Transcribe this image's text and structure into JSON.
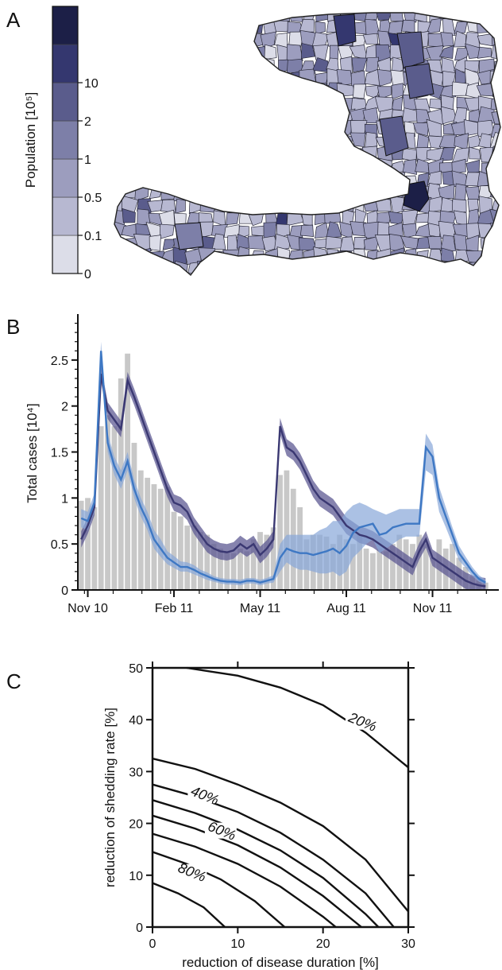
{
  "panels": {
    "a": "A",
    "b": "B",
    "c": "C"
  },
  "colors": {
    "dark_series": "#3a3872",
    "dark_band": "#5e5a93",
    "blue_series": "#3e78c4",
    "blue_band": "#87a6d8",
    "bars": "#c8c8c8",
    "map_outline": "#222222"
  },
  "chart_data": [
    {
      "type": "heatmap",
      "panel": "A",
      "colorbar": {
        "label": "Population [10⁵]",
        "tick_labels": [
          "0",
          "0.1",
          "0.5",
          "1",
          "2",
          "10"
        ],
        "bin_colors": [
          "#dcdde8",
          "#b7b8d1",
          "#9c9dbe",
          "#7d7fa8",
          "#5a5c8c",
          "#34376f",
          "#1c1f47"
        ]
      },
      "map_regions_counts": {
        "0": 30,
        "0.1": 170,
        "0.5": 170,
        "1": 40,
        "2": 12,
        "10": 3
      }
    },
    {
      "type": "bar",
      "panel": "B",
      "ylabel": "Total cases [10⁴]",
      "ylim": [
        0,
        3.0
      ],
      "yticks": [
        "0",
        "0.5",
        "1",
        "1.5",
        "2",
        "2.5"
      ],
      "xticks": [
        "Nov 10",
        "Feb 11",
        "May 11",
        "Aug 11",
        "Nov 11"
      ],
      "xtick_weeks": [
        1.5,
        14.5,
        27.5,
        40.5,
        53.5
      ],
      "x_range": [
        0,
        63.5
      ],
      "bars_weekly": [
        0.97,
        1.0,
        0.9,
        1.78,
        1.9,
        1.78,
        2.3,
        2.57,
        1.6,
        1.3,
        1.22,
        1.15,
        1.1,
        1.12,
        0.85,
        0.8,
        0.7,
        0.7,
        0.63,
        0.6,
        0.5,
        0.45,
        0.42,
        0.4,
        0.45,
        0.42,
        0.55,
        0.63,
        0.6,
        0.68,
        1.25,
        1.3,
        1.1,
        0.9,
        0.55,
        0.6,
        0.6,
        0.58,
        0.5,
        0.6,
        0.55,
        0.5,
        0.6,
        0.45,
        0.4,
        0.45,
        0.42,
        0.5,
        0.6,
        0.55,
        0.5,
        0.6,
        0.5,
        0.35,
        0.55,
        0.45,
        0.5,
        0.35,
        0.25,
        0.15,
        0.1,
        0.08
      ],
      "series": [
        {
          "values": [
            0.55,
            0.7,
            0.9,
            2.35,
            1.95,
            1.85,
            1.75,
            2.28,
            2.1,
            1.9,
            1.7,
            1.5,
            1.3,
            1.1,
            0.95,
            0.92,
            0.85,
            0.7,
            0.6,
            0.5,
            0.45,
            0.42,
            0.41,
            0.43,
            0.5,
            0.45,
            0.5,
            0.38,
            0.45,
            0.55,
            1.78,
            1.55,
            1.5,
            1.4,
            1.25,
            1.1,
            1.0,
            0.95,
            0.9,
            0.8,
            0.7,
            0.65,
            0.6,
            0.58,
            0.55,
            0.5,
            0.45,
            0.4,
            0.35,
            0.3,
            0.25,
            0.42,
            0.55,
            0.35,
            0.3,
            0.25,
            0.2,
            0.15,
            0.1,
            0.07,
            0.05,
            0.04
          ],
          "band": 0.09
        },
        {
          "values": [
            0.78,
            0.75,
            0.95,
            2.6,
            1.6,
            1.35,
            1.2,
            1.4,
            1.1,
            0.9,
            0.75,
            0.55,
            0.45,
            0.35,
            0.3,
            0.25,
            0.25,
            0.22,
            0.18,
            0.15,
            0.12,
            0.1,
            0.09,
            0.09,
            0.08,
            0.1,
            0.1,
            0.08,
            0.1,
            0.12,
            0.35,
            0.45,
            0.42,
            0.4,
            0.4,
            0.38,
            0.4,
            0.42,
            0.45,
            0.4,
            0.48,
            0.62,
            0.68,
            0.7,
            0.72,
            0.6,
            0.62,
            0.68,
            0.7,
            0.72,
            0.72,
            0.72,
            1.55,
            1.45,
            1.0,
            0.8,
            0.6,
            0.4,
            0.3,
            0.2,
            0.12,
            0.08
          ],
          "band_upper": [
            0.88,
            0.85,
            1.05,
            2.7,
            1.7,
            1.45,
            1.3,
            1.5,
            1.2,
            1.0,
            0.85,
            0.65,
            0.55,
            0.42,
            0.37,
            0.31,
            0.3,
            0.27,
            0.22,
            0.19,
            0.15,
            0.13,
            0.12,
            0.12,
            0.11,
            0.13,
            0.13,
            0.11,
            0.13,
            0.16,
            0.5,
            0.6,
            0.6,
            0.6,
            0.6,
            0.6,
            0.65,
            0.68,
            0.75,
            0.75,
            0.85,
            0.92,
            0.95,
            0.92,
            0.88,
            0.85,
            0.82,
            0.85,
            0.88,
            0.88,
            0.88,
            0.88,
            1.7,
            1.58,
            1.12,
            0.9,
            0.68,
            0.48,
            0.36,
            0.25,
            0.16,
            0.11
          ],
          "band_lower": [
            0.68,
            0.65,
            0.85,
            2.5,
            1.5,
            1.25,
            1.1,
            1.3,
            1.0,
            0.8,
            0.65,
            0.45,
            0.36,
            0.28,
            0.24,
            0.2,
            0.2,
            0.17,
            0.14,
            0.11,
            0.09,
            0.07,
            0.06,
            0.06,
            0.05,
            0.07,
            0.07,
            0.05,
            0.07,
            0.08,
            0.2,
            0.3,
            0.25,
            0.22,
            0.22,
            0.2,
            0.18,
            0.18,
            0.2,
            0.15,
            0.2,
            0.35,
            0.42,
            0.5,
            0.55,
            0.4,
            0.45,
            0.5,
            0.55,
            0.58,
            0.58,
            0.58,
            1.3,
            1.25,
            0.85,
            0.68,
            0.5,
            0.32,
            0.24,
            0.15,
            0.09,
            0.06
          ]
        }
      ]
    },
    {
      "type": "line",
      "panel": "C",
      "xlabel": "reduction of disease duration [%]",
      "ylabel": "reduction of shedding rate [%]",
      "xlim": [
        0,
        30
      ],
      "ylim": [
        0,
        50
      ],
      "xticks": [
        "0",
        "10",
        "20",
        "30"
      ],
      "yticks": [
        "0",
        "10",
        "20",
        "30",
        "40",
        "50"
      ],
      "contours": [
        {
          "label": "20%",
          "label_at": [
            24.5,
            39.0
          ],
          "points": [
            [
              4,
              50
            ],
            [
              10,
              48.5
            ],
            [
              15,
              46.2
            ],
            [
              20,
              42.8
            ],
            [
              25,
              37.5
            ],
            [
              30,
              30.8
            ]
          ]
        },
        {
          "label": "",
          "points": [
            [
              0,
              32.5
            ],
            [
              5,
              30.5
            ],
            [
              10,
              27.5
            ],
            [
              15,
              24.0
            ],
            [
              20,
              19.5
            ],
            [
              25,
              13.0
            ],
            [
              30,
              3.0
            ]
          ]
        },
        {
          "label": "40%",
          "label_at": [
            6.0,
            24.8
          ],
          "points": [
            [
              0,
              27.5
            ],
            [
              5,
              25.2
            ],
            [
              10,
              22.2
            ],
            [
              15,
              18.2
            ],
            [
              20,
              13.0
            ],
            [
              25,
              6.5
            ],
            [
              28.3,
              0
            ]
          ]
        },
        {
          "label": "",
          "points": [
            [
              0,
              24.5
            ],
            [
              5,
              22.0
            ],
            [
              10,
              18.8
            ],
            [
              15,
              14.8
            ],
            [
              20,
              9.5
            ],
            [
              25,
              2.5
            ],
            [
              26.5,
              0
            ]
          ]
        },
        {
          "label": "60%",
          "label_at": [
            8.0,
            18.0
          ],
          "points": [
            [
              0,
              21.5
            ],
            [
              5,
              19.0
            ],
            [
              10,
              15.8
            ],
            [
              15,
              11.5
            ],
            [
              20,
              6.0
            ],
            [
              24.5,
              0
            ]
          ]
        },
        {
          "label": "",
          "points": [
            [
              0,
              18.0
            ],
            [
              5,
              15.5
            ],
            [
              10,
              12.2
            ],
            [
              15,
              7.8
            ],
            [
              20,
              2.0
            ],
            [
              21.5,
              0
            ]
          ]
        },
        {
          "label": "80%",
          "label_at": [
            4.5,
            10.0
          ],
          "points": [
            [
              0,
              14.5
            ],
            [
              4,
              12.2
            ],
            [
              8,
              9.2
            ],
            [
              12,
              5.0
            ],
            [
              15.5,
              0
            ]
          ]
        },
        {
          "label": "",
          "points": [
            [
              0,
              8.5
            ],
            [
              3,
              6.5
            ],
            [
              6,
              3.8
            ],
            [
              8.5,
              0
            ]
          ]
        }
      ]
    }
  ]
}
